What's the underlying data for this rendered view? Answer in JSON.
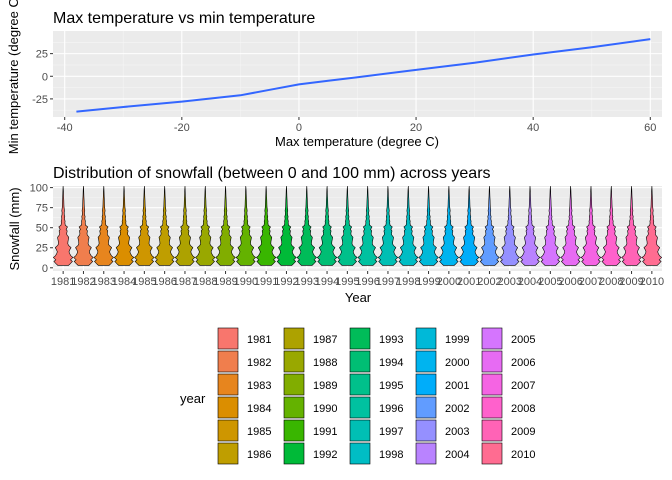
{
  "chart_data": [
    {
      "type": "line",
      "title": "Max temperature vs min temperature",
      "xlabel": "Max temperature (degree C)",
      "ylabel": "Min temperature (degree C)",
      "xlim": [
        -42,
        62
      ],
      "ylim": [
        -45,
        50
      ],
      "x_ticks": [
        -40,
        -20,
        0,
        20,
        40,
        60
      ],
      "x_tick_labels": [
        "-40",
        "-20",
        "0",
        "20",
        "40",
        "60"
      ],
      "y_ticks": [
        -25,
        0,
        25
      ],
      "y_tick_labels": [
        "-25",
        "0",
        "25"
      ],
      "grid": true,
      "line_color": "#3366ff",
      "x": [
        -38,
        -30,
        -20,
        -10,
        -5,
        0,
        5,
        10,
        20,
        30,
        40,
        50,
        60
      ],
      "y": [
        -39,
        -34,
        -28,
        -21,
        -15,
        -9,
        -5,
        -1,
        7,
        15,
        24,
        32,
        41
      ]
    },
    {
      "type": "violin",
      "title": "Distribution of snowfall (between 0 and 100 mm) across years",
      "xlabel": "Year",
      "ylabel": "Snowfall (mm)",
      "ylim": [
        -4,
        102
      ],
      "y_ticks": [
        0,
        25,
        50,
        75,
        100
      ],
      "y_tick_labels": [
        "0",
        "25",
        "50",
        "75",
        "100"
      ],
      "grid": true,
      "legend_title": "year",
      "legend_position": "bottom",
      "categories": [
        "1981",
        "1982",
        "1983",
        "1984",
        "1985",
        "1986",
        "1987",
        "1988",
        "1989",
        "1990",
        "1991",
        "1992",
        "1993",
        "1994",
        "1995",
        "1996",
        "1997",
        "1998",
        "1999",
        "2000",
        "2001",
        "2002",
        "2003",
        "2004",
        "2005",
        "2006",
        "2007",
        "2008",
        "2009",
        "2010"
      ],
      "colors": [
        "#F8766D",
        "#F07E4D",
        "#E7851E",
        "#DB8E00",
        "#CE9600",
        "#BF9E00",
        "#ADA200",
        "#99A800",
        "#81AD00",
        "#64B200",
        "#39B600",
        "#00BA38",
        "#00BC59",
        "#00BE74",
        "#00C08B",
        "#00C1A0",
        "#00BFB4",
        "#00BDC4",
        "#00B9D8",
        "#00B4EF",
        "#00ADFA",
        "#619CFF",
        "#9590FF",
        "#B983FF",
        "#D575FE",
        "#E76BF3",
        "#F564E3",
        "#FF61CC",
        "#FF63B6",
        "#FF6C91"
      ],
      "snowfall_levels": [
        3,
        5,
        8,
        10,
        13,
        15,
        18,
        20,
        23,
        25,
        28,
        30,
        33,
        38,
        41,
        43,
        46,
        48,
        51,
        53,
        56,
        58,
        61,
        64,
        66,
        69,
        71,
        76,
        79,
        84,
        89,
        97,
        102
      ],
      "density_profile": [
        0.55,
        0.72,
        0.95,
        0.75,
        1.0,
        0.8,
        0.65,
        0.6,
        0.7,
        0.82,
        0.55,
        0.48,
        0.5,
        0.58,
        0.38,
        0.36,
        0.42,
        0.3,
        0.45,
        0.22,
        0.18,
        0.2,
        0.14,
        0.17,
        0.12,
        0.11,
        0.14,
        0.09,
        0.08,
        0.07,
        0.05,
        0.03,
        0.0
      ]
    }
  ]
}
